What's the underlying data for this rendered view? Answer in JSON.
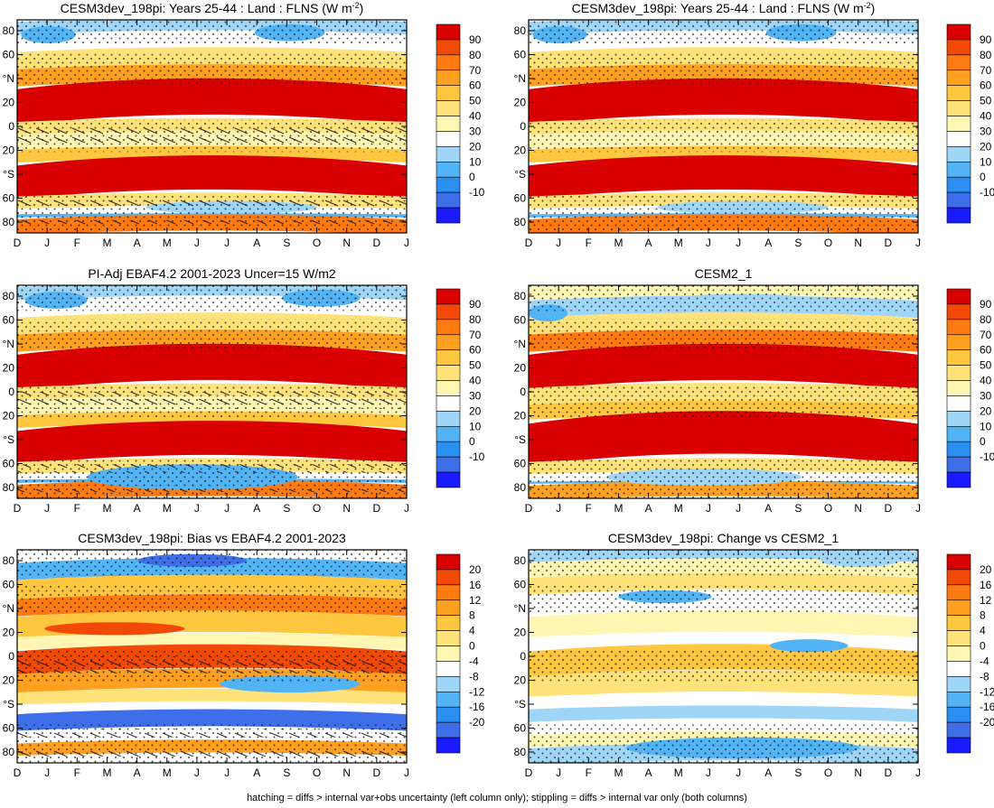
{
  "chart_data": [
    {
      "type": "heatmap",
      "title": "CESM3dev_198pi: Years 25-44 : Land : FLNS (W m",
      "title_sup": "-2",
      "title_suffix": ")",
      "x": [
        "D",
        "J",
        "F",
        "M",
        "A",
        "M",
        "J",
        "J",
        "A",
        "S",
        "O",
        "N",
        "D",
        "J"
      ],
      "y_ticks": [
        "80",
        "60",
        "°N",
        "20",
        "0",
        "20",
        "°S",
        "60",
        "80"
      ],
      "colorbar": [
        "90",
        "80",
        "70",
        "60",
        "50",
        "40",
        "30",
        "20",
        "10",
        "0",
        "-10"
      ],
      "scale": "abs",
      "overlay": [
        "stipple",
        "hatch"
      ],
      "pattern": "A"
    },
    {
      "type": "heatmap",
      "title": "CESM3dev_198pi: Years 25-44 : Land : FLNS (W m",
      "title_sup": "-2",
      "title_suffix": ")",
      "x": [
        "D",
        "J",
        "F",
        "M",
        "A",
        "M",
        "J",
        "J",
        "A",
        "S",
        "O",
        "N",
        "D",
        "J"
      ],
      "y_ticks": [
        "80",
        "60",
        "°N",
        "20",
        "0",
        "20",
        "°S",
        "60",
        "80"
      ],
      "colorbar": [
        "90",
        "80",
        "70",
        "60",
        "50",
        "40",
        "30",
        "20",
        "10",
        "0",
        "-10"
      ],
      "scale": "abs",
      "overlay": [
        "stipple"
      ],
      "pattern": "A"
    },
    {
      "type": "heatmap",
      "title": "PI-Adj EBAF4.2 2001-2023 Uncer=15 W/m2",
      "x": [
        "D",
        "J",
        "F",
        "M",
        "A",
        "M",
        "J",
        "J",
        "A",
        "S",
        "O",
        "N",
        "D",
        "J"
      ],
      "y_ticks": [
        "80",
        "60",
        "°N",
        "20",
        "0",
        "20",
        "°S",
        "60",
        "80"
      ],
      "colorbar": [
        "90",
        "80",
        "70",
        "60",
        "50",
        "40",
        "30",
        "20",
        "10",
        "0",
        "-10"
      ],
      "scale": "abs",
      "overlay": [
        "stipple",
        "hatch"
      ],
      "pattern": "B"
    },
    {
      "type": "heatmap",
      "title": "CESM2_1",
      "x": [
        "D",
        "J",
        "F",
        "M",
        "A",
        "M",
        "J",
        "J",
        "A",
        "S",
        "O",
        "N",
        "D",
        "J"
      ],
      "y_ticks": [
        "80",
        "60",
        "°N",
        "20",
        "0",
        "20",
        "°S",
        "60",
        "80"
      ],
      "colorbar": [
        "90",
        "80",
        "70",
        "60",
        "50",
        "40",
        "30",
        "20",
        "10",
        "0",
        "-10"
      ],
      "scale": "abs",
      "overlay": [
        "stipple"
      ],
      "pattern": "C"
    },
    {
      "type": "heatmap",
      "title": "CESM3dev_198pi: Bias vs EBAF4.2 2001-2023",
      "x": [
        "D",
        "J",
        "F",
        "M",
        "A",
        "M",
        "J",
        "J",
        "A",
        "S",
        "O",
        "N",
        "D",
        "J"
      ],
      "y_ticks": [
        "80",
        "60",
        "°N",
        "20",
        "0",
        "20",
        "°S",
        "60",
        "80"
      ],
      "colorbar": [
        "20",
        "16",
        "12",
        "8",
        "4",
        "0",
        "-4",
        "-8",
        "-12",
        "-16",
        "-20"
      ],
      "scale": "diff",
      "overlay": [
        "stipple",
        "hatch"
      ],
      "pattern": "D"
    },
    {
      "type": "heatmap",
      "title": "CESM3dev_198pi: Change vs CESM2_1",
      "x": [
        "D",
        "J",
        "F",
        "M",
        "A",
        "M",
        "J",
        "J",
        "A",
        "S",
        "O",
        "N",
        "D",
        "J"
      ],
      "y_ticks": [
        "80",
        "60",
        "°N",
        "20",
        "0",
        "20",
        "°S",
        "60",
        "80"
      ],
      "colorbar": [
        "20",
        "16",
        "12",
        "8",
        "4",
        "0",
        "-4",
        "-8",
        "-12",
        "-16",
        "-20"
      ],
      "scale": "diff",
      "overlay": [
        "stipple"
      ],
      "pattern": "E"
    }
  ],
  "palettes": {
    "abs": [
      "#1a1aff",
      "#3f6fe8",
      "#2a8ff0",
      "#52b4f5",
      "#9fd5f7",
      "#ffffff",
      "#fff6b4",
      "#ffe27a",
      "#ffc640",
      "#ffa020",
      "#ff7a10",
      "#f04a06",
      "#d80000"
    ],
    "diff": [
      "#1a1aff",
      "#3f6fe8",
      "#2a8ff0",
      "#52b4f5",
      "#9fd5f7",
      "#ffffff",
      "#fff6b4",
      "#ffe27a",
      "#ffc640",
      "#ffa020",
      "#ff7a10",
      "#f04a06",
      "#d80000"
    ]
  },
  "footer": "hatching = diffs > internal var+obs uncertainty (left column only); stippling = diffs > internal var only (both columns)"
}
